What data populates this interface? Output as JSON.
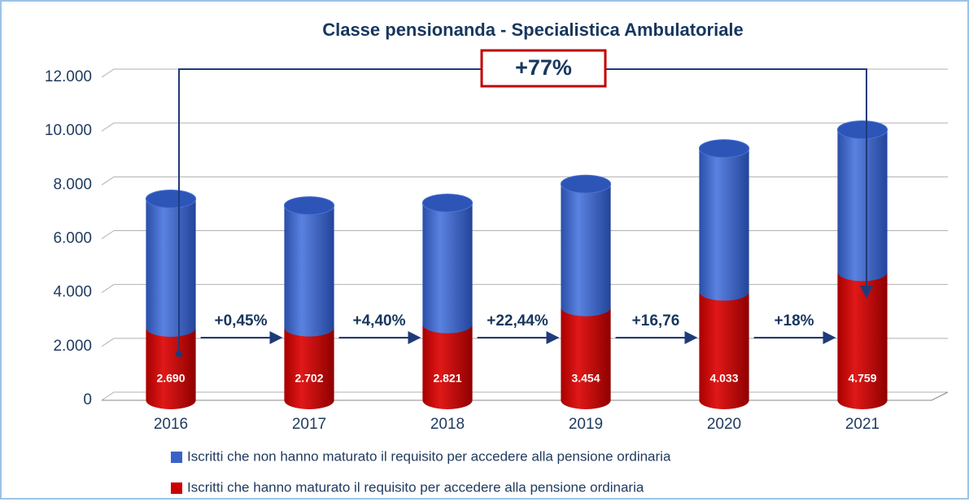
{
  "chart_data": {
    "type": "bar",
    "title": "Classe pensionanda - Specialistica Ambulatoriale",
    "categories": [
      "2016",
      "2017",
      "2018",
      "2019",
      "2020",
      "2021"
    ],
    "series": [
      {
        "name": "Iscritti che non hanno maturato il requisito per accedere alla pensione ordinaria",
        "color": "#3a63c8",
        "values": [
          4790,
          4530,
          4510,
          4580,
          5320,
          5290
        ]
      },
      {
        "name": "Iscritti che hanno maturato il requisito per accedere alla pensione ordinaria",
        "color": "#cc0000",
        "values": [
          2690,
          2702,
          2821,
          3454,
          4033,
          4759
        ],
        "value_labels": [
          "2.690",
          "2.702",
          "2.821",
          "3.454",
          "4.033",
          "4.759"
        ]
      }
    ],
    "stacked": true,
    "ylim": [
      0,
      12000
    ],
    "yticks": [
      0,
      {
        "value": 2000,
        "label": "2.000"
      },
      {
        "value": 4000,
        "label": "4.000"
      },
      {
        "value": 6000,
        "label": "6.000"
      },
      {
        "value": 8000,
        "label": "8.000"
      },
      {
        "value": 10000,
        "label": "10.000"
      },
      {
        "value": 12000,
        "label": "12.000"
      }
    ],
    "grid": true,
    "annotations": [
      "+77%",
      "+0,45%",
      "+4,40%",
      "+22,44%",
      "+16,76",
      "+18%"
    ]
  }
}
